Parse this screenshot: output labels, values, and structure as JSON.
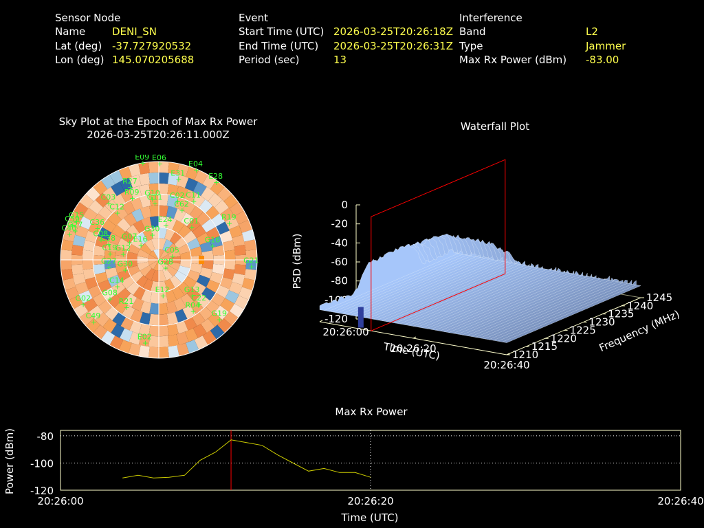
{
  "sensor": {
    "heading": "Sensor Node",
    "rows": [
      {
        "label": "Name",
        "value": "DENI_SN"
      },
      {
        "label": "Lat (deg)",
        "value": "-37.727920532"
      },
      {
        "label": "Lon (deg)",
        "value": "145.070205688"
      }
    ]
  },
  "event": {
    "heading": "Event",
    "rows": [
      {
        "label": "Start Time (UTC)",
        "value": "2026-03-25T20:26:18Z"
      },
      {
        "label": "End Time (UTC)",
        "value": "2026-03-25T20:26:31Z"
      },
      {
        "label": "Period (sec)",
        "value": "13"
      }
    ]
  },
  "interference": {
    "heading": "Interference",
    "rows": [
      {
        "label": "Band",
        "value": "L2"
      },
      {
        "label": "Type",
        "value": "Jammer"
      },
      {
        "label": "Max Rx Power (dBm)",
        "value": "-83.00"
      }
    ]
  },
  "colors": {
    "background": "#000000",
    "label_text": "#ffffff",
    "value_text": "#ffff4d",
    "satellite": "#33ff33",
    "axis": "#ffffcc",
    "marker": "#ff0000",
    "power_line": "#cccc00"
  },
  "chart_data": [
    {
      "type": "sky-plot",
      "title": "Sky Plot at the Epoch of Max Rx Power",
      "subtitle": "2026-03-25T20:26:11.000Z",
      "satellites": [
        {
          "id": "E09",
          "az": 350,
          "el": 0
        },
        {
          "id": "E06",
          "az": 0,
          "el": 2
        },
        {
          "id": "E04",
          "az": 22,
          "el": 1
        },
        {
          "id": "E28",
          "az": 36,
          "el": 2
        },
        {
          "id": "E31",
          "az": 13,
          "el": 14
        },
        {
          "id": "R27",
          "az": 338,
          "el": 18
        },
        {
          "id": "R09",
          "az": 336,
          "el": 28
        },
        {
          "id": "G10",
          "az": 353,
          "el": 34
        },
        {
          "id": "G11",
          "az": 355,
          "el": 38
        },
        {
          "id": "C02",
          "az": 17,
          "el": 34
        },
        {
          "id": "C11",
          "az": 30,
          "el": 28
        },
        {
          "id": "C03",
          "az": 318,
          "el": 20
        },
        {
          "id": "C12",
          "az": 318,
          "el": 32
        },
        {
          "id": "C62",
          "az": 24,
          "el": 40
        },
        {
          "id": "R19",
          "az": 62,
          "el": 18
        },
        {
          "id": "E24",
          "az": 10,
          "el": 58
        },
        {
          "id": "C01",
          "az": 44,
          "el": 48
        },
        {
          "id": "G16",
          "az": 75,
          "el": 40
        },
        {
          "id": "G15",
          "az": 295,
          "el": 6
        },
        {
          "id": "C59",
          "az": 292,
          "el": 4
        },
        {
          "id": "G27",
          "az": 289,
          "el": 8
        },
        {
          "id": "C40",
          "az": 286,
          "el": 4
        },
        {
          "id": "C36",
          "az": 297,
          "el": 26
        },
        {
          "id": "C08",
          "az": 289,
          "el": 33
        },
        {
          "id": "C38",
          "az": 287,
          "el": 41
        },
        {
          "id": "G07",
          "az": 300,
          "el": 58
        },
        {
          "id": "E16",
          "az": 308,
          "el": 68
        },
        {
          "id": "G30",
          "az": 343,
          "el": 66
        },
        {
          "id": "C19",
          "az": 277,
          "el": 44
        },
        {
          "id": "G12",
          "az": 279,
          "el": 56
        },
        {
          "id": "G27",
          "az": 262,
          "el": 43
        },
        {
          "id": "G30",
          "az": 254,
          "el": 57
        },
        {
          "id": "C14",
          "az": 238,
          "el": 44
        },
        {
          "id": "C05",
          "az": 73,
          "el": 78
        },
        {
          "id": "G28",
          "az": 144,
          "el": 81
        },
        {
          "id": "E12",
          "az": 175,
          "el": 57
        },
        {
          "id": "G13",
          "az": 138,
          "el": 46
        },
        {
          "id": "G21",
          "az": 94,
          "el": 6
        },
        {
          "id": "C22",
          "az": 138,
          "el": 36
        },
        {
          "id": "R04",
          "az": 147,
          "el": 34
        },
        {
          "id": "G19",
          "az": 135,
          "el": 13
        },
        {
          "id": "G02",
          "az": 240,
          "el": 9
        },
        {
          "id": "C49",
          "az": 227,
          "el": 7
        },
        {
          "id": "G08",
          "az": 232,
          "el": 32
        },
        {
          "id": "R21",
          "az": 215,
          "el": 37
        },
        {
          "id": "E02",
          "az": 190,
          "el": 13
        }
      ]
    },
    {
      "type": "surface",
      "title": "Waterfall Plot",
      "xlabel": "Time (UTC)",
      "ylabel": "Frequency (MHz)",
      "zlabel": "PSD (dBm)",
      "x_ticks": [
        "20:26:00",
        "20:26:20",
        "20:26:40"
      ],
      "y_ticks": [
        "1210",
        "1215",
        "1220",
        "1225",
        "1230",
        "1235",
        "1240",
        "1245"
      ],
      "z_ticks": [
        "-120",
        "-100",
        "-80",
        "-60",
        "-40",
        "-20",
        "0"
      ],
      "zlim": [
        -120,
        0
      ],
      "freq_range": [
        1210,
        1245
      ],
      "psd_floor": -105,
      "psd_peak": -60,
      "marker_time": "20:26:11"
    },
    {
      "type": "line",
      "title": "Max Rx Power",
      "xlabel": "Time (UTC)",
      "ylabel": "Power (dBm)",
      "x_ticks": [
        "20:26:00",
        "20:26:20",
        "20:26:40"
      ],
      "y_ticks": [
        -80,
        -100,
        -120
      ],
      "xlim": [
        0,
        40
      ],
      "ylim": [
        -120,
        -76
      ],
      "marker_time": 11,
      "x": [
        4,
        5,
        6,
        7,
        8,
        9,
        10,
        11,
        12,
        13,
        14,
        15,
        16,
        17,
        18,
        19,
        20
      ],
      "y": [
        -111,
        -109,
        -111,
        -110.5,
        -109,
        -98,
        -92,
        -83,
        -85,
        -87,
        -94,
        -100,
        -106,
        -104,
        -107,
        -107,
        -110.5
      ]
    }
  ]
}
